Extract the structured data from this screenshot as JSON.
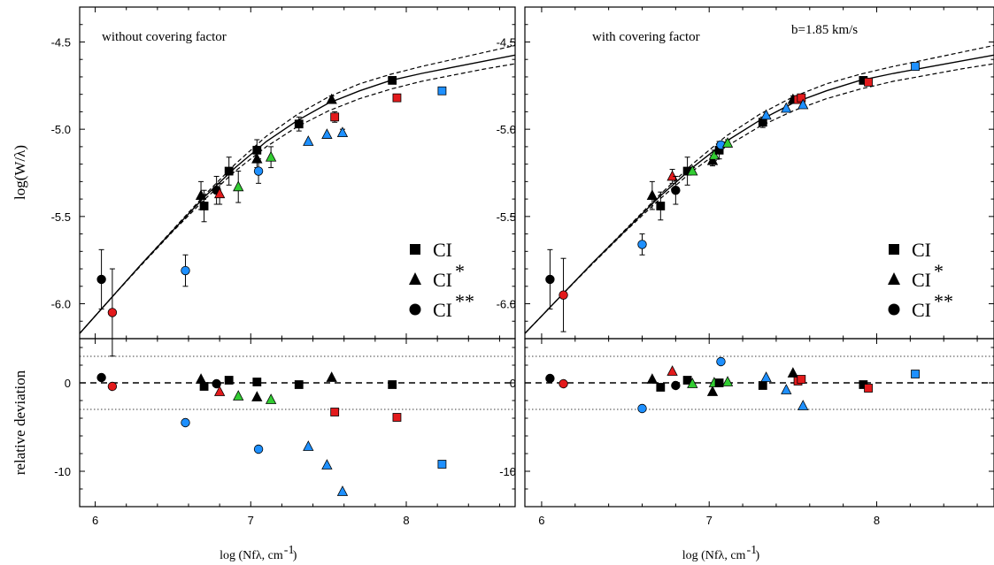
{
  "chart_data": [
    {
      "type": "scatter",
      "panel": "left",
      "annotation": "without covering factor",
      "annotation2": "",
      "ylabel": "log(W/λ)",
      "residual_ylabel": "relative deviation",
      "xlabel": "log (Nfλ, cm",
      "xlabel_sup": "-1",
      "xlabel_close": ")",
      "xlim": [
        5.9,
        8.7
      ],
      "ylim": [
        -6.2,
        -4.3
      ],
      "rlim": [
        -14,
        5
      ],
      "x_ticks": [
        6,
        7,
        8
      ],
      "y_ticks": [
        -6.0,
        -5.5,
        -5.0,
        -4.5
      ],
      "y_tick_labels": [
        "-6.0",
        "-5.5",
        "-5.0",
        "-4.5"
      ],
      "r_ticks": [
        -10,
        0
      ],
      "r_tick_labels": [
        "-10",
        "0"
      ],
      "r_dotted_levels": [
        3,
        -3
      ],
      "legend": [
        {
          "marker": "square",
          "label": "CI",
          "sup": ""
        },
        {
          "marker": "triangle",
          "label": "CI",
          "sup": "*"
        },
        {
          "marker": "circle",
          "label": "CI",
          "sup": "**"
        }
      ],
      "curve_of_growth": {
        "solid": [
          [
            5.9,
            -6.17
          ],
          [
            6.1,
            -5.97
          ],
          [
            6.3,
            -5.77
          ],
          [
            6.5,
            -5.58
          ],
          [
            6.7,
            -5.39
          ],
          [
            6.9,
            -5.22
          ],
          [
            7.1,
            -5.07
          ],
          [
            7.3,
            -4.95
          ],
          [
            7.5,
            -4.85
          ],
          [
            7.7,
            -4.78
          ],
          [
            7.9,
            -4.72
          ],
          [
            8.1,
            -4.68
          ],
          [
            8.3,
            -4.645
          ],
          [
            8.5,
            -4.61
          ],
          [
            8.7,
            -4.575
          ]
        ],
        "dashed_upper": [
          [
            5.9,
            -6.17
          ],
          [
            6.1,
            -5.97
          ],
          [
            6.3,
            -5.77
          ],
          [
            6.5,
            -5.575
          ],
          [
            6.7,
            -5.38
          ],
          [
            6.9,
            -5.2
          ],
          [
            7.1,
            -5.04
          ],
          [
            7.3,
            -4.915
          ],
          [
            7.5,
            -4.815
          ],
          [
            7.7,
            -4.74
          ],
          [
            7.9,
            -4.685
          ],
          [
            8.1,
            -4.64
          ],
          [
            8.3,
            -4.6
          ],
          [
            8.5,
            -4.56
          ],
          [
            8.7,
            -4.52
          ]
        ],
        "dashed_lower": [
          [
            5.9,
            -6.17
          ],
          [
            6.1,
            -5.97
          ],
          [
            6.3,
            -5.775
          ],
          [
            6.5,
            -5.585
          ],
          [
            6.7,
            -5.405
          ],
          [
            6.9,
            -5.24
          ],
          [
            7.1,
            -5.1
          ],
          [
            7.3,
            -4.985
          ],
          [
            7.5,
            -4.895
          ],
          [
            7.7,
            -4.825
          ],
          [
            7.9,
            -4.77
          ],
          [
            8.1,
            -4.725
          ],
          [
            8.3,
            -4.69
          ],
          [
            8.5,
            -4.655
          ],
          [
            8.7,
            -4.625
          ]
        ]
      },
      "points": [
        {
          "x": 6.04,
          "y": -5.86,
          "err": 0.17,
          "shape": "circle",
          "color": "#000000",
          "r": 0.6
        },
        {
          "x": 6.11,
          "y": -6.05,
          "err": 0.25,
          "shape": "circle",
          "color": "#e31a1c",
          "r": -0.4
        },
        {
          "x": 6.58,
          "y": -5.81,
          "err": 0.09,
          "shape": "circle",
          "color": "#1e90ff",
          "r": -4.5
        },
        {
          "x": 6.68,
          "y": -5.38,
          "err": 0.08,
          "shape": "triangle",
          "color": "#000000",
          "r": 0.4
        },
        {
          "x": 6.7,
          "y": -5.44,
          "err": 0.09,
          "shape": "square",
          "color": "#000000",
          "r": -0.4
        },
        {
          "x": 6.78,
          "y": -5.35,
          "err": 0.08,
          "shape": "circle",
          "color": "#000000",
          "r": -0.1
        },
        {
          "x": 6.8,
          "y": -5.37,
          "err": 0.06,
          "shape": "triangle",
          "color": "#e31a1c",
          "r": -1.0
        },
        {
          "x": 6.86,
          "y": -5.24,
          "err": 0.08,
          "shape": "square",
          "color": "#000000",
          "r": 0.3
        },
        {
          "x": 6.92,
          "y": -5.33,
          "err": 0.09,
          "shape": "triangle",
          "color": "#32cd32",
          "r": -1.5
        },
        {
          "x": 7.04,
          "y": -5.12,
          "err": 0.06,
          "shape": "square",
          "color": "#000000",
          "r": 0.1
        },
        {
          "x": 7.04,
          "y": -5.17,
          "err": 0.05,
          "shape": "triangle",
          "color": "#000000",
          "r": -1.6
        },
        {
          "x": 7.05,
          "y": -5.24,
          "err": 0.07,
          "shape": "circle",
          "color": "#1e90ff",
          "r": -7.5
        },
        {
          "x": 7.13,
          "y": -5.16,
          "err": 0.06,
          "shape": "triangle",
          "color": "#32cd32",
          "r": -1.9
        },
        {
          "x": 7.31,
          "y": -4.97,
          "err": 0.04,
          "shape": "square",
          "color": "#000000",
          "r": -0.2
        },
        {
          "x": 7.37,
          "y": -5.07,
          "err": 0.0,
          "shape": "triangle",
          "color": "#1e90ff",
          "r": -7.2
        },
        {
          "x": 7.49,
          "y": -5.03,
          "err": 0.0,
          "shape": "triangle",
          "color": "#1e90ff",
          "r": -9.3
        },
        {
          "x": 7.52,
          "y": -4.83,
          "err": 0.02,
          "shape": "triangle",
          "color": "#000000",
          "r": 0.6
        },
        {
          "x": 7.54,
          "y": -4.93,
          "err": 0.03,
          "shape": "square",
          "color": "#e31a1c",
          "r": -3.3
        },
        {
          "x": 7.59,
          "y": -5.02,
          "err": 0.02,
          "shape": "triangle",
          "color": "#1e90ff",
          "r": -12.3
        },
        {
          "x": 7.91,
          "y": -4.72,
          "err": 0.0,
          "shape": "square",
          "color": "#000000",
          "r": -0.2
        },
        {
          "x": 7.94,
          "y": -4.82,
          "err": 0.02,
          "shape": "square",
          "color": "#e31a1c",
          "r": -3.9
        },
        {
          "x": 8.23,
          "y": -4.78,
          "err": 0.0,
          "shape": "square",
          "color": "#1e90ff",
          "r": -9.2
        }
      ]
    },
    {
      "type": "scatter",
      "panel": "right",
      "annotation": "with covering factor",
      "annotation2": "b=1.85 km/s",
      "ylabel": "",
      "residual_ylabel": "",
      "xlabel": "log (Nfλ, cm",
      "xlabel_sup": "-1",
      "xlabel_close": ")",
      "xlim": [
        5.9,
        8.7
      ],
      "ylim": [
        -6.2,
        -4.3
      ],
      "rlim": [
        -14,
        5
      ],
      "x_ticks": [
        6,
        7,
        8
      ],
      "y_ticks": [
        -6.0,
        -5.5,
        -5.0,
        -4.5
      ],
      "y_tick_labels": [
        "-6.0",
        "-5.5",
        "-5.0",
        "-4.5"
      ],
      "r_ticks": [
        -10,
        0
      ],
      "r_tick_labels": [
        "-10",
        "0"
      ],
      "r_dotted_levels": [
        3,
        -3
      ],
      "legend": [
        {
          "marker": "square",
          "label": "CI",
          "sup": ""
        },
        {
          "marker": "triangle",
          "label": "CI",
          "sup": "*"
        },
        {
          "marker": "circle",
          "label": "CI",
          "sup": "**"
        }
      ],
      "curve_of_growth": {
        "solid": [
          [
            5.9,
            -6.17
          ],
          [
            6.1,
            -5.97
          ],
          [
            6.3,
            -5.77
          ],
          [
            6.5,
            -5.58
          ],
          [
            6.7,
            -5.39
          ],
          [
            6.9,
            -5.22
          ],
          [
            7.1,
            -5.07
          ],
          [
            7.3,
            -4.95
          ],
          [
            7.5,
            -4.85
          ],
          [
            7.7,
            -4.78
          ],
          [
            7.9,
            -4.72
          ],
          [
            8.1,
            -4.68
          ],
          [
            8.3,
            -4.645
          ],
          [
            8.5,
            -4.61
          ],
          [
            8.7,
            -4.575
          ]
        ],
        "dashed_upper": [
          [
            5.9,
            -6.17
          ],
          [
            6.1,
            -5.97
          ],
          [
            6.3,
            -5.77
          ],
          [
            6.5,
            -5.575
          ],
          [
            6.7,
            -5.38
          ],
          [
            6.9,
            -5.2
          ],
          [
            7.1,
            -5.04
          ],
          [
            7.3,
            -4.915
          ],
          [
            7.5,
            -4.815
          ],
          [
            7.7,
            -4.74
          ],
          [
            7.9,
            -4.685
          ],
          [
            8.1,
            -4.64
          ],
          [
            8.3,
            -4.6
          ],
          [
            8.5,
            -4.56
          ],
          [
            8.7,
            -4.52
          ]
        ],
        "dashed_lower": [
          [
            5.9,
            -6.17
          ],
          [
            6.1,
            -5.97
          ],
          [
            6.3,
            -5.775
          ],
          [
            6.5,
            -5.585
          ],
          [
            6.7,
            -5.405
          ],
          [
            6.9,
            -5.24
          ],
          [
            7.1,
            -5.1
          ],
          [
            7.3,
            -4.985
          ],
          [
            7.5,
            -4.895
          ],
          [
            7.7,
            -4.825
          ],
          [
            7.9,
            -4.77
          ],
          [
            8.1,
            -4.725
          ],
          [
            8.3,
            -4.69
          ],
          [
            8.5,
            -4.655
          ],
          [
            8.7,
            -4.625
          ]
        ]
      },
      "points": [
        {
          "x": 6.05,
          "y": -5.86,
          "err": 0.17,
          "shape": "circle",
          "color": "#000000",
          "r": 0.5
        },
        {
          "x": 6.13,
          "y": -5.95,
          "err": 0.21,
          "shape": "circle",
          "color": "#e31a1c",
          "r": -0.1
        },
        {
          "x": 6.6,
          "y": -5.66,
          "err": 0.06,
          "shape": "circle",
          "color": "#1e90ff",
          "r": -2.9
        },
        {
          "x": 6.66,
          "y": -5.38,
          "err": 0.08,
          "shape": "triangle",
          "color": "#000000",
          "r": 0.4
        },
        {
          "x": 6.71,
          "y": -5.44,
          "err": 0.08,
          "shape": "square",
          "color": "#000000",
          "r": -0.5
        },
        {
          "x": 6.78,
          "y": -5.27,
          "err": 0.04,
          "shape": "triangle",
          "color": "#e31a1c",
          "r": 1.3
        },
        {
          "x": 6.8,
          "y": -5.35,
          "err": 0.08,
          "shape": "circle",
          "color": "#000000",
          "r": -0.3
        },
        {
          "x": 6.87,
          "y": -5.24,
          "err": 0.08,
          "shape": "square",
          "color": "#000000",
          "r": 0.3
        },
        {
          "x": 6.9,
          "y": -5.24,
          "err": 0.02,
          "shape": "triangle",
          "color": "#32cd32",
          "r": -0.1
        },
        {
          "x": 7.02,
          "y": -5.18,
          "err": 0.03,
          "shape": "triangle",
          "color": "#000000",
          "r": -1.0
        },
        {
          "x": 7.03,
          "y": -5.15,
          "err": 0.03,
          "shape": "triangle",
          "color": "#32cd32",
          "r": 0.0
        },
        {
          "x": 7.06,
          "y": -5.12,
          "err": 0.05,
          "shape": "square",
          "color": "#000000",
          "r": 0.0
        },
        {
          "x": 7.07,
          "y": -5.09,
          "err": 0.02,
          "shape": "circle",
          "color": "#1e90ff",
          "r": 2.4
        },
        {
          "x": 7.11,
          "y": -5.08,
          "err": 0.02,
          "shape": "triangle",
          "color": "#32cd32",
          "r": 0.1
        },
        {
          "x": 7.32,
          "y": -4.96,
          "err": 0.03,
          "shape": "square",
          "color": "#000000",
          "r": -0.3
        },
        {
          "x": 7.34,
          "y": -4.92,
          "err": 0.0,
          "shape": "triangle",
          "color": "#1e90ff",
          "r": 0.6
        },
        {
          "x": 7.46,
          "y": -4.88,
          "err": 0.0,
          "shape": "triangle",
          "color": "#1e90ff",
          "r": -0.8
        },
        {
          "x": 7.5,
          "y": -4.83,
          "err": 0.02,
          "shape": "triangle",
          "color": "#000000",
          "r": 1.1
        },
        {
          "x": 7.53,
          "y": -4.83,
          "err": 0.02,
          "shape": "square",
          "color": "#e31a1c",
          "r": 0.2
        },
        {
          "x": 7.55,
          "y": -4.82,
          "err": 0.02,
          "shape": "square",
          "color": "#e31a1c",
          "r": 0.4
        },
        {
          "x": 7.56,
          "y": -4.86,
          "err": 0.0,
          "shape": "triangle",
          "color": "#1e90ff",
          "r": -2.6
        },
        {
          "x": 7.92,
          "y": -4.72,
          "err": 0.02,
          "shape": "square",
          "color": "#000000",
          "r": -0.2
        },
        {
          "x": 7.95,
          "y": -4.73,
          "err": 0.02,
          "shape": "square",
          "color": "#e31a1c",
          "r": -0.6
        },
        {
          "x": 8.23,
          "y": -4.64,
          "err": 0.02,
          "shape": "square",
          "color": "#1e90ff",
          "r": 1.0
        }
      ]
    }
  ]
}
